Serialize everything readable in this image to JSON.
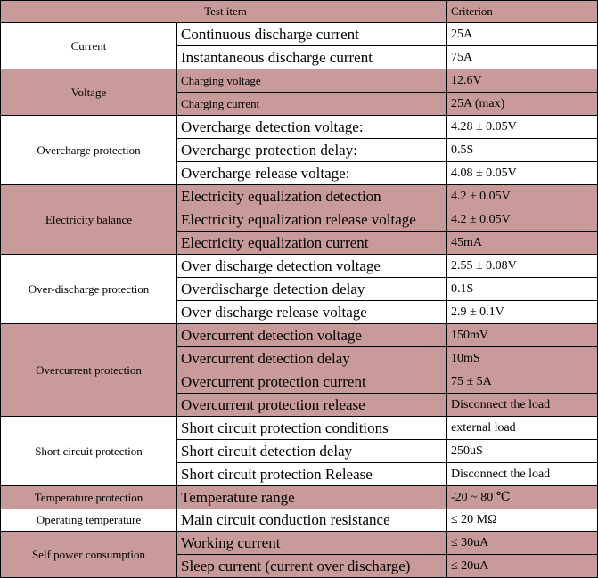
{
  "header": {
    "test_item": "Test item",
    "criterion": "Criterion"
  },
  "groups": [
    {
      "name": "Current",
      "shaded": false,
      "rows": [
        {
          "item": "Continuous discharge current",
          "criterion": "25A"
        },
        {
          "item": "Instantaneous discharge current",
          "criterion": "75A"
        }
      ]
    },
    {
      "name": "Voltage",
      "shaded": true,
      "rows": [
        {
          "item": "Charging voltage",
          "criterion": " 12.6V",
          "small": true
        },
        {
          "item": "Charging current",
          "criterion": "25A (max)",
          "small": true
        }
      ]
    },
    {
      "name": "Overcharge protection",
      "shaded": false,
      "rows": [
        {
          "item": "Overcharge detection voltage:",
          "criterion": "4.28 ± 0.05V"
        },
        {
          "item": "Overcharge protection delay:",
          "criterion": "0.5S"
        },
        {
          "item": "Overcharge release voltage:",
          "criterion": "4.08 ± 0.05V"
        }
      ]
    },
    {
      "name": "Electricity balance",
      "shaded": true,
      "rows": [
        {
          "item": "Electricity equalization detection",
          "criterion": "4.2 ± 0.05V"
        },
        {
          "item": "Electricity equalization release voltage",
          "criterion": "4.2 ± 0.05V"
        },
        {
          "item": "Electricity equalization current",
          "criterion": "45mA"
        }
      ]
    },
    {
      "name": "Over-discharge protection",
      "shaded": false,
      "rows": [
        {
          "item": "Over discharge detection voltage",
          "criterion": "2.55 ± 0.08V"
        },
        {
          "item": "Overdischarge detection delay",
          "criterion": "0.1S"
        },
        {
          "item": "Over discharge release voltage",
          "criterion": "2.9 ± 0.1V"
        }
      ]
    },
    {
      "name": "Overcurrent protection",
      "shaded": true,
      "rows": [
        {
          "item": "Overcurrent detection voltage",
          "criterion": "150mV"
        },
        {
          "item": "Overcurrent detection delay",
          "criterion": "10mS"
        },
        {
          "item": "Overcurrent protection current",
          "criterion": "75 ± 5A"
        },
        {
          "item": "Overcurrent protection release",
          "criterion": "Disconnect the load"
        }
      ]
    },
    {
      "name": "Short circuit protection",
      "shaded": false,
      "rows": [
        {
          "item": "Short circuit protection conditions",
          "criterion": "external load"
        },
        {
          "item": "Short circuit detection delay",
          "criterion": "250uS"
        },
        {
          "item": "Short circuit protection Release",
          "criterion": "Disconnect the load"
        }
      ]
    },
    {
      "name": "Temperature protection",
      "shaded": true,
      "rows": [
        {
          "item": "Temperature range",
          "criterion": " -20 ~ 80 ℃"
        }
      ]
    },
    {
      "name": "Operating temperature",
      "shaded": false,
      "rows": [
        {
          "item": "Main circuit conduction resistance",
          "criterion": "≤ 20 MΩ"
        }
      ]
    },
    {
      "name": "Self power consumption",
      "shaded": true,
      "rows": [
        {
          "item": "Working current",
          "criterion": "≤ 30uA"
        },
        {
          "item": "Sleep current (current over discharge)",
          "criterion": "≤ 20uA"
        }
      ]
    }
  ]
}
